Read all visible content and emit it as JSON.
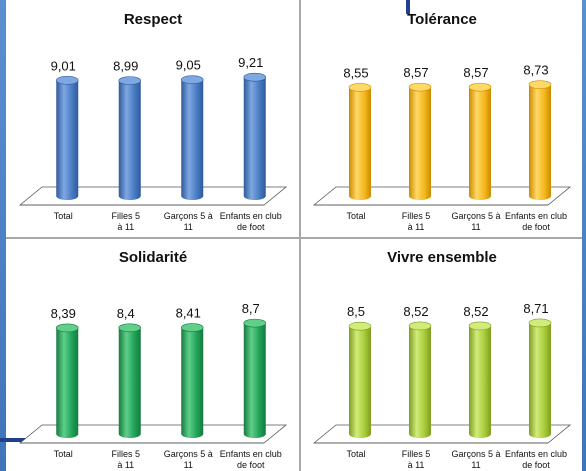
{
  "chart_data": [
    {
      "type": "bar",
      "title": "Respect",
      "categories": [
        "Total",
        "Filles 5 à 11",
        "Garçons 5 à 11",
        "Enfants en club de foot"
      ],
      "values": [
        9.01,
        8.99,
        9.05,
        9.21
      ],
      "value_labels": [
        "9,01",
        "8,99",
        "9,05",
        "9,21"
      ],
      "color": "#4a7cc4",
      "color_light": "#7fa8e2",
      "color_dark": "#2e5a9a",
      "grid": false,
      "legend": "none"
    },
    {
      "type": "bar",
      "title": "Tolérance",
      "categories": [
        "Total",
        "Filles 5 à 11",
        "Garçons 5 à 11",
        "Enfants en club de foot"
      ],
      "values": [
        8.55,
        8.57,
        8.57,
        8.73
      ],
      "value_labels": [
        "8,55",
        "8,57",
        "8,57",
        "8,73"
      ],
      "color": "#f5b820",
      "color_light": "#ffd966",
      "color_dark": "#c98a00",
      "grid": false,
      "legend": "none"
    },
    {
      "type": "bar",
      "title": "Solidarité",
      "categories": [
        "Total",
        "Filles 5 à 11",
        "Garçons 5 à 11",
        "Enfants en club de foot"
      ],
      "values": [
        8.39,
        8.4,
        8.41,
        8.7
      ],
      "value_labels": [
        "8,39",
        "8,4",
        "8,41",
        "8,7"
      ],
      "color": "#22a35a",
      "color_light": "#5fcf8a",
      "color_dark": "#167a40",
      "grid": false,
      "legend": "none"
    },
    {
      "type": "bar",
      "title": "Vivre ensemble",
      "categories": [
        "Total",
        "Filles 5 à 11",
        "Garçons 5 à 11",
        "Enfants en club de foot"
      ],
      "values": [
        8.5,
        8.52,
        8.52,
        8.71
      ],
      "value_labels": [
        "8,5",
        "8,52",
        "8,52",
        "8,71"
      ],
      "color": "#a9cc3a",
      "color_light": "#d2ec7a",
      "color_dark": "#7f9c22",
      "grid": false,
      "legend": "none"
    }
  ]
}
